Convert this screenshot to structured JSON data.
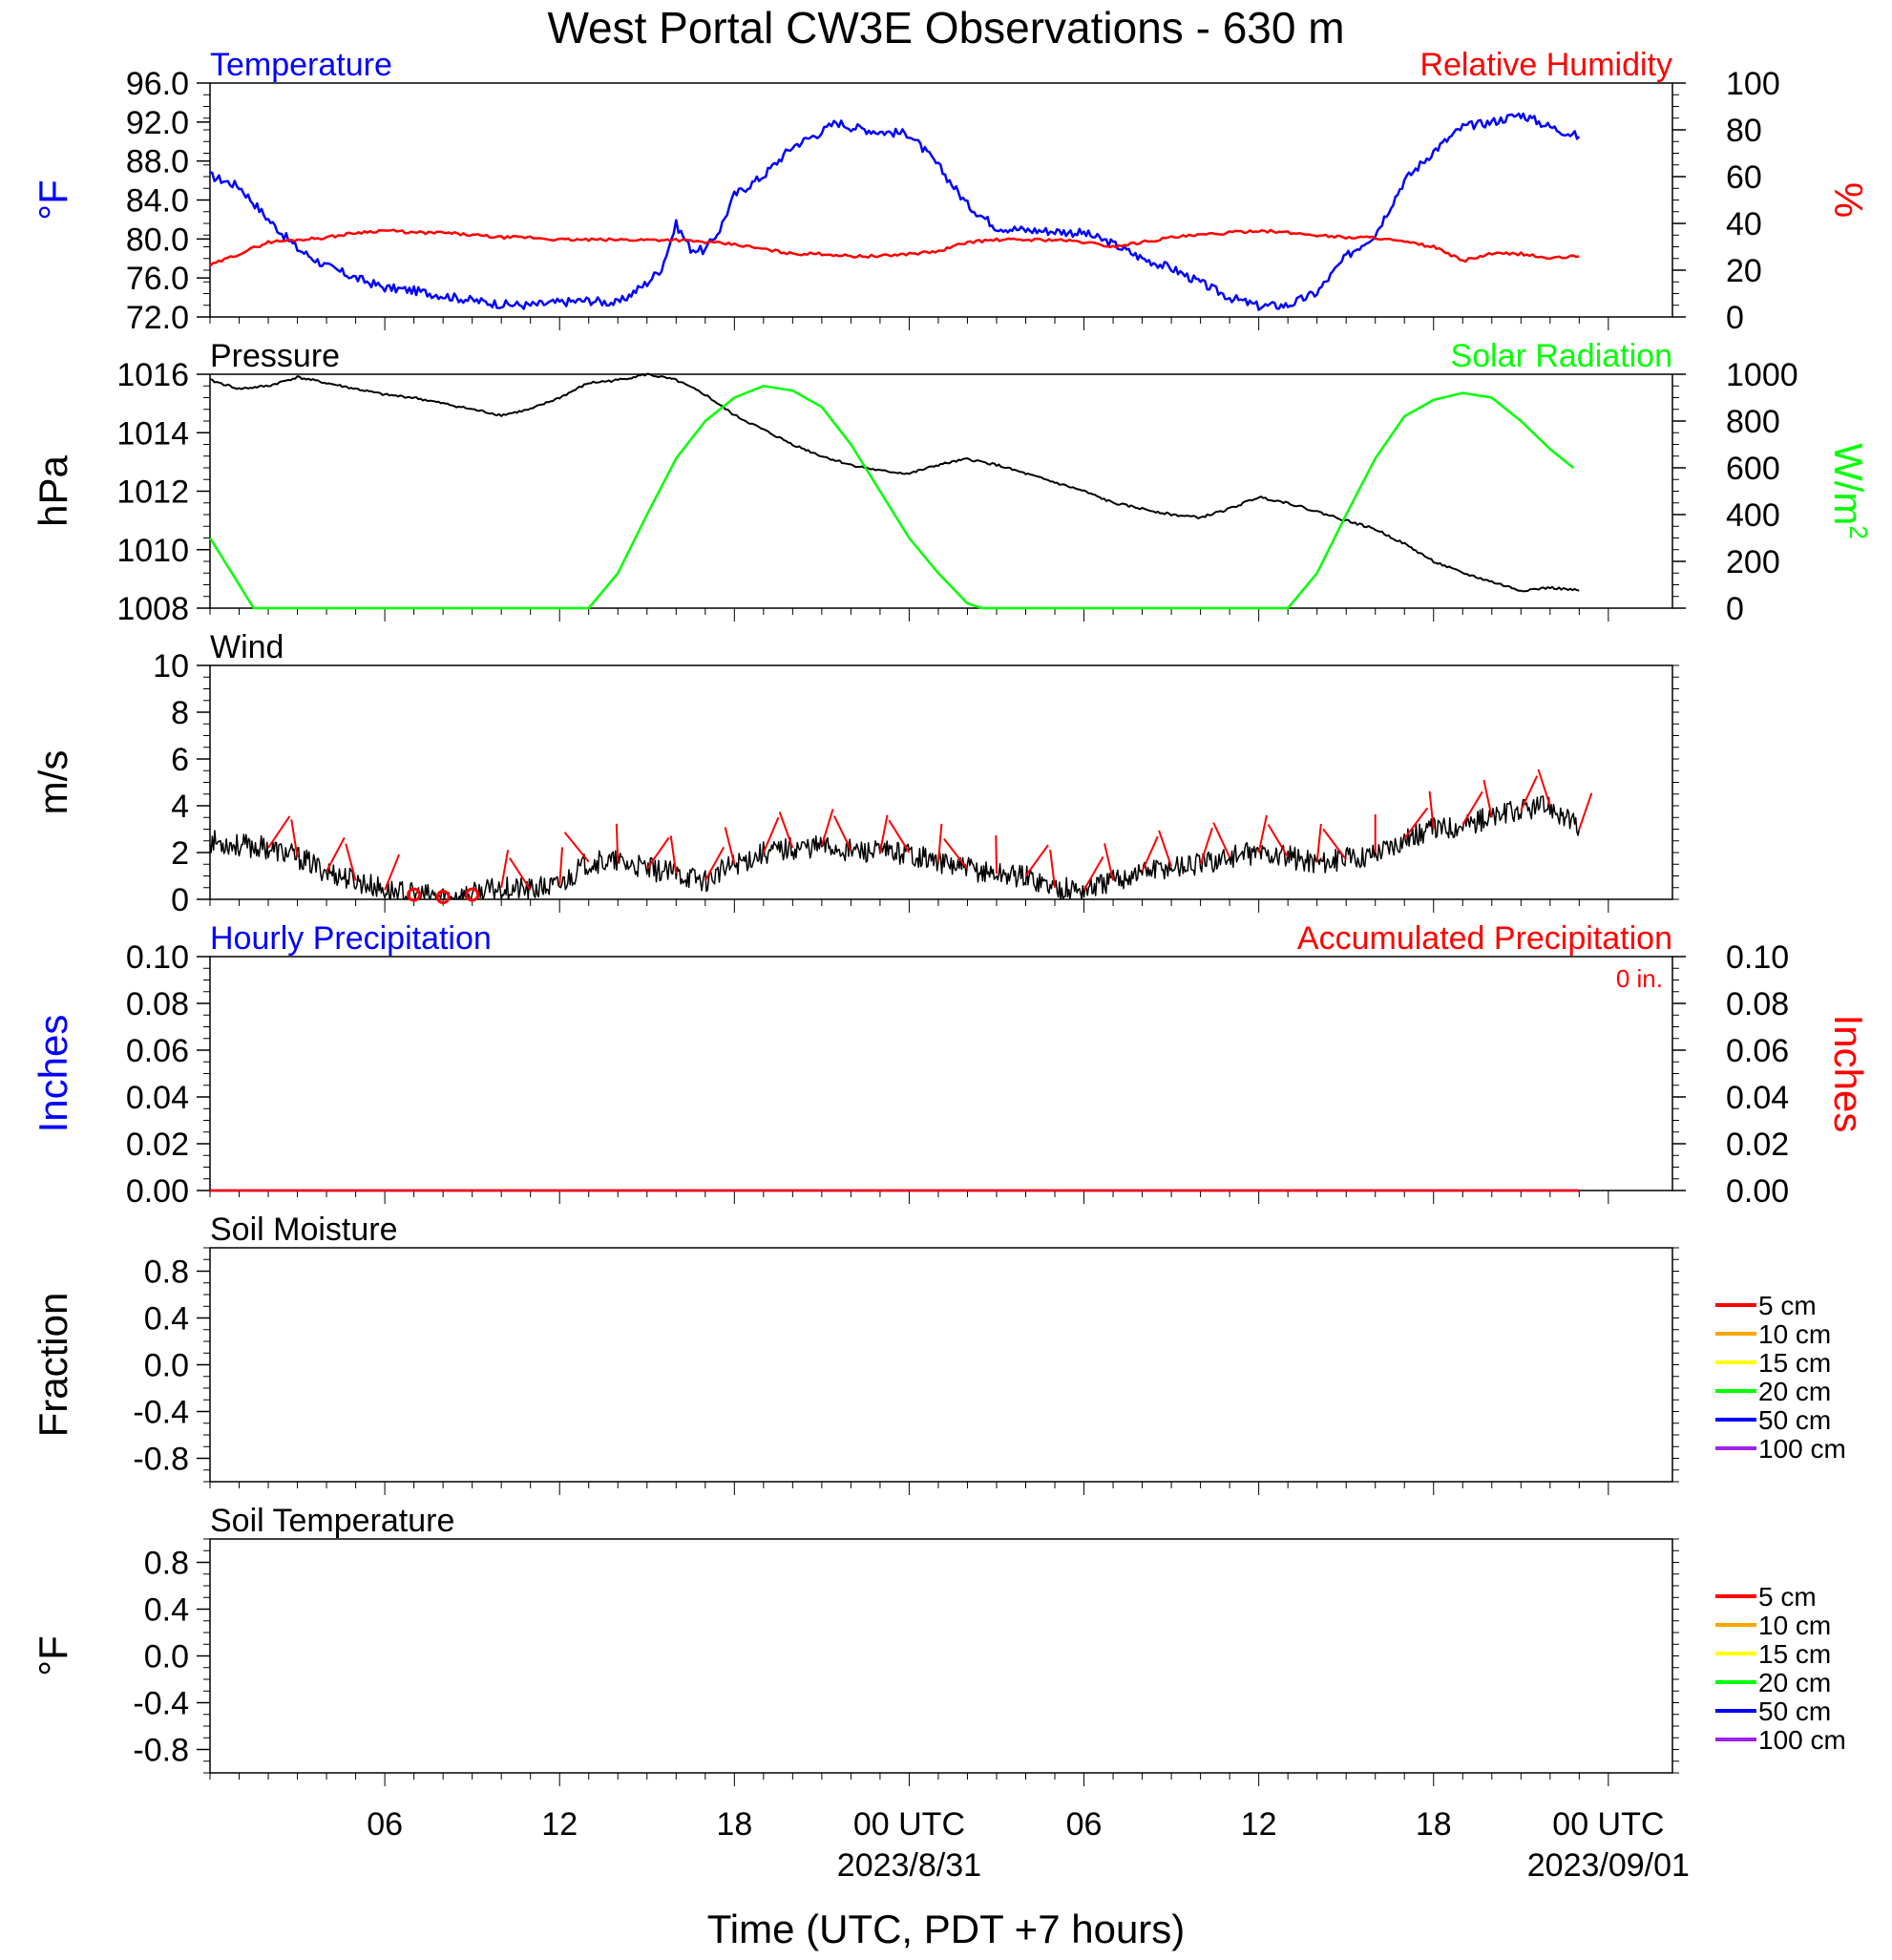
{
  "title": "West Portal CW3E Observations - 630 m",
  "xlabel": "Time (UTC, PDT +7 hours)",
  "x_ticks": [
    {
      "hour": 6,
      "label": "06"
    },
    {
      "hour": 12,
      "label": "12"
    },
    {
      "hour": 18,
      "label": "18"
    },
    {
      "hour": 24,
      "label": "00 UTC",
      "date": "2023/8/31"
    },
    {
      "hour": 30,
      "label": "06"
    },
    {
      "hour": 36,
      "label": "12"
    },
    {
      "hour": 42,
      "label": "18"
    },
    {
      "hour": 48,
      "label": "00 UTC",
      "date": "2023/09/01"
    }
  ],
  "colors": {
    "temperature": "#0000ff",
    "humidity": "#ff0000",
    "pressure": "#000000",
    "solar": "#00ff00",
    "wind": "#000000",
    "barb": "#ff0000",
    "hourly_precip": "#0000ff",
    "accum_precip": "#ff0000"
  },
  "panels": {
    "temperature": {
      "left_title": "Temperature",
      "right_title": "Relative Humidity",
      "left_ylabel": "°F",
      "right_ylabel": "%",
      "left_ticks": [
        "72.0",
        "76.0",
        "80.0",
        "84.0",
        "88.0",
        "92.0",
        "96.0"
      ],
      "right_ticks": [
        "0",
        "20",
        "40",
        "60",
        "80",
        "100"
      ]
    },
    "pressure": {
      "left_title": "Pressure",
      "right_title": "Solar Radiation",
      "left_ylabel": "hPa",
      "right_ylabel": "W/m",
      "right_ylabel_sup": "2",
      "left_ticks": [
        "1008",
        "1010",
        "1012",
        "1014",
        "1016"
      ],
      "right_ticks": [
        "0",
        "200",
        "400",
        "600",
        "800",
        "1000"
      ]
    },
    "wind": {
      "left_title": "Wind",
      "left_ylabel": "m/s",
      "left_ticks": [
        "0",
        "2",
        "4",
        "6",
        "8",
        "10"
      ]
    },
    "precip": {
      "left_title": "Hourly Precipitation",
      "right_title": "Accumulated Precipitation",
      "left_ylabel": "Inches",
      "right_ylabel": "Inches",
      "accum_label": "0 in.",
      "left_ticks": [
        "0.00",
        "0.02",
        "0.04",
        "0.06",
        "0.08",
        "0.10"
      ],
      "right_ticks": [
        "0.00",
        "0.02",
        "0.04",
        "0.06",
        "0.08",
        "0.10"
      ]
    },
    "soil_moisture": {
      "left_title": "Soil Moisture",
      "left_ylabel": "Fraction",
      "left_ticks": [
        "-0.8",
        "-0.4",
        "0.0",
        "0.4",
        "0.8"
      ],
      "legend": [
        {
          "label": "5 cm",
          "color": "#ff0000"
        },
        {
          "label": "10 cm",
          "color": "#ffa500"
        },
        {
          "label": "15 cm",
          "color": "#ffff00"
        },
        {
          "label": "20 cm",
          "color": "#00ff00"
        },
        {
          "label": "50 cm",
          "color": "#0000ff"
        },
        {
          "label": "100 cm",
          "color": "#a020f0"
        }
      ]
    },
    "soil_temperature": {
      "left_title": "Soil Temperature",
      "left_ylabel": "°F",
      "left_ticks": [
        "-0.8",
        "-0.4",
        "0.0",
        "0.4",
        "0.8"
      ],
      "legend": [
        {
          "label": "5 cm",
          "color": "#ff0000"
        },
        {
          "label": "10 cm",
          "color": "#ffa500"
        },
        {
          "label": "15 cm",
          "color": "#ffff00"
        },
        {
          "label": "20 cm",
          "color": "#00ff00"
        },
        {
          "label": "50 cm",
          "color": "#0000ff"
        },
        {
          "label": "100 cm",
          "color": "#a020f0"
        }
      ]
    }
  },
  "chart_data": [
    {
      "type": "line",
      "title": "Temperature",
      "xlabel": "Time (UTC, PDT +7 hours)",
      "ylabel": "°F",
      "xlim": [
        0,
        48
      ],
      "ylim": [
        72,
        96
      ],
      "series": [
        {
          "name": "Temperature",
          "x": [
            0,
            1,
            2,
            3,
            4,
            5,
            6,
            7,
            8,
            9,
            10,
            11,
            12,
            13,
            14,
            15,
            15.5,
            16,
            16.5,
            17,
            17.5,
            18,
            19,
            20,
            21,
            21.5,
            22,
            23,
            24,
            25,
            26,
            27,
            28,
            29,
            30,
            31,
            32,
            33,
            34,
            35,
            36,
            37,
            38,
            39,
            40,
            41,
            42,
            43,
            44,
            45,
            46,
            47
          ],
          "y": [
            86.5,
            85.4,
            82,
            79,
            77.2,
            76,
            75,
            74.7,
            74.2,
            73.7,
            73.3,
            73.2,
            73.5,
            73.7,
            73.4,
            75.5,
            77,
            81.5,
            79,
            78.8,
            81,
            84.5,
            86.5,
            89.5,
            91,
            92,
            91.5,
            91,
            90.8,
            87.5,
            83.5,
            81.2,
            80.9,
            80.8,
            80.6,
            79.5,
            78,
            77,
            75.5,
            74,
            73.1,
            73.2,
            74.5,
            78.2,
            80.5,
            86,
            89,
            91.5,
            92,
            92.8,
            91.5,
            90.5
          ]
        }
      ]
    },
    {
      "type": "line",
      "title": "Relative Humidity",
      "ylabel": "%",
      "xlim": [
        0,
        48
      ],
      "ylim": [
        0,
        100
      ],
      "series": [
        {
          "name": "Relative Humidity",
          "x": [
            0,
            1,
            2,
            3,
            4,
            5,
            6,
            7,
            8,
            9,
            10,
            11,
            12,
            13,
            14,
            15,
            16,
            17,
            18,
            19,
            20,
            21,
            22,
            23,
            24,
            25,
            26,
            27,
            28,
            29,
            30,
            31,
            32,
            33,
            34,
            35,
            36,
            37,
            38,
            39,
            40,
            41,
            42,
            43,
            44,
            45,
            46,
            47
          ],
          "y": [
            22,
            27,
            32,
            33,
            34,
            36,
            37,
            36,
            36,
            35,
            34,
            34,
            33,
            33,
            33,
            33,
            33,
            32,
            31,
            29,
            27,
            27,
            26,
            26,
            27,
            28,
            32,
            33,
            33,
            33,
            32,
            30,
            32,
            34,
            35,
            36,
            37,
            36,
            35,
            34,
            34,
            32,
            30,
            24,
            27,
            27,
            25,
            26
          ]
        }
      ]
    },
    {
      "type": "line",
      "title": "Pressure",
      "ylabel": "hPa",
      "xlim": [
        0,
        48
      ],
      "ylim": [
        1008,
        1016
      ],
      "series": [
        {
          "name": "Pressure",
          "x": [
            0,
            1,
            2,
            3,
            4,
            5,
            6,
            7,
            8,
            9,
            10,
            11,
            12,
            13,
            14,
            15,
            16,
            17,
            18,
            19,
            20,
            21,
            22,
            23,
            24,
            25,
            26,
            27,
            28,
            29,
            30,
            31,
            32,
            33,
            34,
            35,
            36,
            37,
            38,
            39,
            40,
            41,
            42,
            43,
            44,
            45,
            46,
            47
          ],
          "y": [
            1015.8,
            1015.5,
            1015.6,
            1015.9,
            1015.7,
            1015.5,
            1015.3,
            1015.2,
            1015.0,
            1014.8,
            1014.6,
            1014.8,
            1015.2,
            1015.7,
            1015.8,
            1016.0,
            1015.8,
            1015.3,
            1014.6,
            1014.1,
            1013.6,
            1013.2,
            1012.9,
            1012.7,
            1012.6,
            1012.9,
            1013.1,
            1012.9,
            1012.6,
            1012.3,
            1012.0,
            1011.6,
            1011.4,
            1011.2,
            1011.1,
            1011.4,
            1011.8,
            1011.6,
            1011.3,
            1011.0,
            1010.7,
            1010.2,
            1009.6,
            1009.2,
            1008.9,
            1008.6,
            1008.7,
            1008.6
          ]
        }
      ]
    },
    {
      "type": "line",
      "title": "Solar Radiation",
      "ylabel": "W/m2",
      "xlim": [
        0,
        48
      ],
      "ylim": [
        0,
        1000
      ],
      "series": [
        {
          "name": "Solar Radiation",
          "x": [
            0,
            1.5,
            2,
            12.5,
            13,
            14,
            15,
            16,
            17,
            18,
            19,
            20,
            21,
            22,
            23,
            24,
            25,
            26,
            26.5,
            36.5,
            37,
            38,
            39,
            40,
            41,
            42,
            43,
            44,
            45,
            46,
            46.8
          ],
          "y": [
            300,
            0,
            0,
            0,
            0,
            150,
            400,
            640,
            800,
            900,
            950,
            930,
            860,
            700,
            500,
            300,
            150,
            20,
            0,
            0,
            0,
            150,
            400,
            640,
            820,
            890,
            920,
            900,
            800,
            680,
            600
          ]
        }
      ]
    },
    {
      "type": "line",
      "title": "Wind",
      "ylabel": "m/s",
      "xlim": [
        0,
        48
      ],
      "ylim": [
        0,
        10
      ],
      "series": [
        {
          "name": "Wind",
          "x": [
            0,
            1,
            2,
            3,
            4,
            5,
            6,
            7,
            8,
            9,
            10,
            11,
            12,
            13,
            14,
            15,
            16,
            17,
            18,
            19,
            20,
            21,
            22,
            23,
            24,
            25,
            26,
            27,
            28,
            29,
            30,
            31,
            32,
            33,
            34,
            35,
            36,
            37,
            38,
            39,
            40,
            41,
            42,
            43,
            44,
            45,
            46,
            47
          ],
          "y": [
            2.5,
            2.3,
            2.2,
            1.8,
            1.2,
            0.8,
            0.4,
            0.2,
            0.1,
            0.2,
            0.5,
            0.4,
            0.6,
            1.6,
            1.6,
            1.3,
            1.1,
            0.8,
            1.5,
            2.0,
            2.2,
            2.3,
            2.1,
            2.0,
            2.0,
            1.6,
            1.3,
            1.1,
            1.0,
            0.5,
            0.4,
            0.8,
            1.2,
            1.4,
            1.5,
            1.8,
            2.0,
            1.8,
            1.6,
            1.7,
            2.0,
            2.6,
            3.0,
            3.2,
            3.5,
            3.8,
            4.0,
            3.0
          ]
        }
      ]
    },
    {
      "type": "line",
      "title": "Hourly Precipitation",
      "ylabel": "Inches",
      "xlim": [
        0,
        48
      ],
      "ylim": [
        0,
        0.1
      ],
      "series": [
        {
          "name": "Hourly Precipitation",
          "x": [
            0,
            47
          ],
          "y": [
            0,
            0
          ]
        },
        {
          "name": "Accumulated Precipitation",
          "x": [
            0,
            47
          ],
          "y": [
            0,
            0
          ]
        }
      ]
    }
  ]
}
